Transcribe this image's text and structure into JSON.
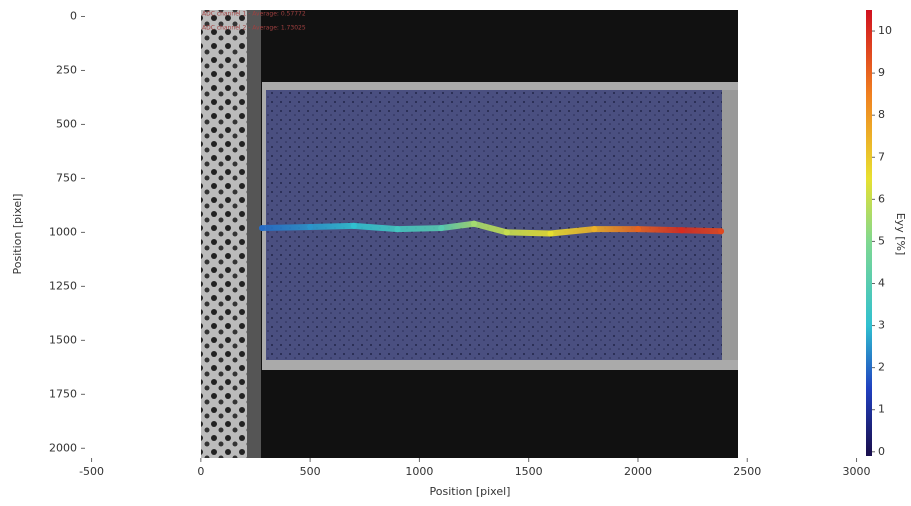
{
  "chart_data": {
    "type": "strain-map",
    "xlabel": "Position [pixel]",
    "ylabel": "Position [pixel]",
    "colorbar_label": "Eyy [%]",
    "annotations": [
      "ADC channel 1 - Average: 0.57772",
      "ADC channel 2 - Average: 1.73025"
    ],
    "xlim": [
      -530,
      3025
    ],
    "xticks": [
      -500,
      0,
      500,
      1000,
      1500,
      2000,
      2500,
      3000
    ],
    "ylim": [
      -30,
      2045
    ],
    "yticks": [
      0,
      250,
      500,
      750,
      1000,
      1250,
      1500,
      1750,
      2000
    ],
    "y_inverted": true,
    "clim": [
      -0.1,
      10.5
    ],
    "cticks": [
      0,
      1,
      2,
      3,
      4,
      5,
      6,
      7,
      8,
      9,
      10
    ],
    "colormap": [
      {
        "value": 0,
        "color": "#1a1050"
      },
      {
        "value": 1.5,
        "color": "#2040c0"
      },
      {
        "value": 3,
        "color": "#30c0d0"
      },
      {
        "value": 5,
        "color": "#80d890"
      },
      {
        "value": 6.5,
        "color": "#e8e030"
      },
      {
        "value": 8.5,
        "color": "#f08020"
      },
      {
        "value": 10.5,
        "color": "#d01020"
      }
    ],
    "band": {
      "x": [
        280,
        500,
        700,
        900,
        1100,
        1250,
        1400,
        1600,
        1800,
        2000,
        2200,
        2380
      ],
      "y": [
        980,
        975,
        970,
        985,
        980,
        960,
        1000,
        1005,
        985,
        985,
        990,
        995
      ],
      "strain": [
        2,
        2.5,
        3,
        3.5,
        4,
        5.5,
        6,
        6.5,
        7.5,
        9,
        10,
        9.5
      ]
    }
  }
}
